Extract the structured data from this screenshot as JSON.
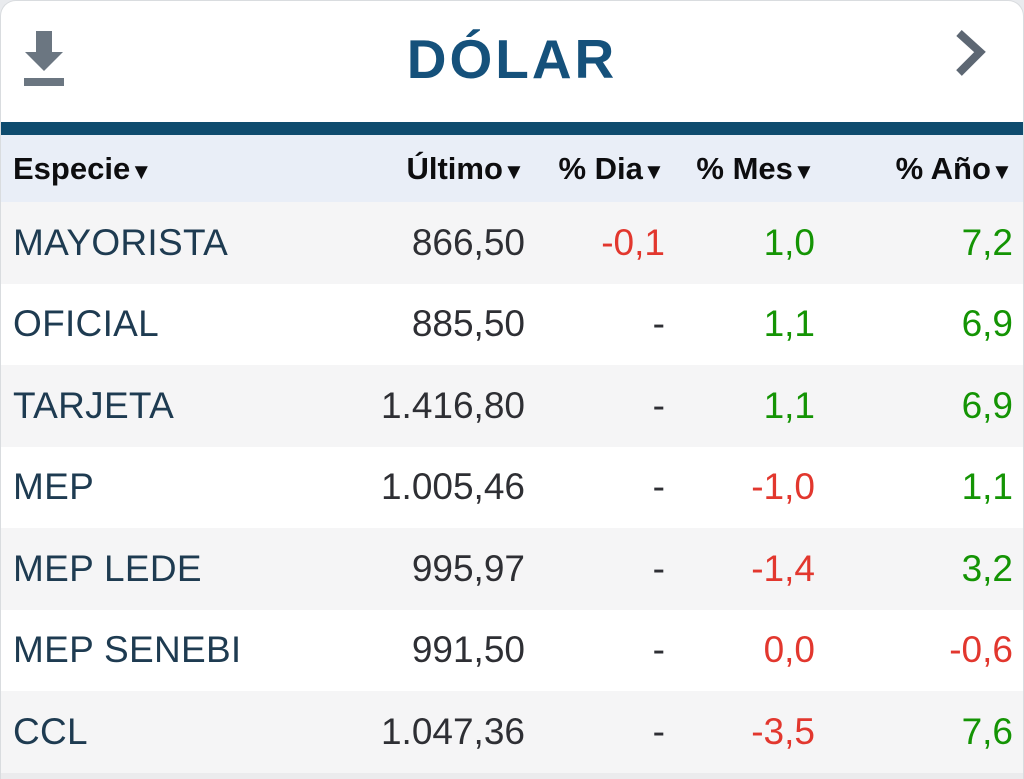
{
  "card": {
    "header": {
      "title": "DÓLAR"
    },
    "table": {
      "columns": [
        {
          "label": "Especie",
          "arrow": "▼"
        },
        {
          "label": "Último",
          "arrow": "▼"
        },
        {
          "label": "% Dia",
          "arrow": "▼"
        },
        {
          "label": "% Mes",
          "arrow": "▼"
        },
        {
          "label": "% Año",
          "arrow": "▼"
        }
      ],
      "rows": [
        {
          "especie": "MAYORISTA",
          "ultimo": "866,50",
          "dia": "-0,1",
          "dia_color": "negative",
          "mes": "1,0",
          "mes_color": "positive",
          "anio": "7,2",
          "anio_color": "positive"
        },
        {
          "especie": "OFICIAL",
          "ultimo": "885,50",
          "dia": "-",
          "dia_color": "neutral",
          "mes": "1,1",
          "mes_color": "positive",
          "anio": "6,9",
          "anio_color": "positive"
        },
        {
          "especie": "TARJETA",
          "ultimo": "1.416,80",
          "dia": "-",
          "dia_color": "neutral",
          "mes": "1,1",
          "mes_color": "positive",
          "anio": "6,9",
          "anio_color": "positive"
        },
        {
          "especie": "MEP",
          "ultimo": "1.005,46",
          "dia": "-",
          "dia_color": "neutral",
          "mes": "-1,0",
          "mes_color": "negative",
          "anio": "1,1",
          "anio_color": "positive"
        },
        {
          "especie": "MEP LEDE",
          "ultimo": "995,97",
          "dia": "-",
          "dia_color": "neutral",
          "mes": "-1,4",
          "mes_color": "negative",
          "anio": "3,2",
          "anio_color": "positive"
        },
        {
          "especie": "MEP SENEBI",
          "ultimo": "991,50",
          "dia": "-",
          "dia_color": "neutral",
          "mes": "0,0",
          "mes_color": "negative",
          "anio": "-0,6",
          "anio_color": "negative"
        },
        {
          "especie": "CCL",
          "ultimo": "1.047,36",
          "dia": "-",
          "dia_color": "neutral",
          "mes": "-3,5",
          "mes_color": "negative",
          "anio": "7,6",
          "anio_color": "positive"
        }
      ]
    }
  },
  "colors": {
    "brand_bar": "#0e4b6e",
    "title": "#15517b",
    "row_label": "#1e3b51",
    "number": "#2e2f34",
    "positive": "#149404",
    "negative": "#e2372e",
    "header_row_bg": "#e9eef7",
    "row_alt_bg": "#f5f5f6",
    "icon_gray": "#6b7681"
  }
}
